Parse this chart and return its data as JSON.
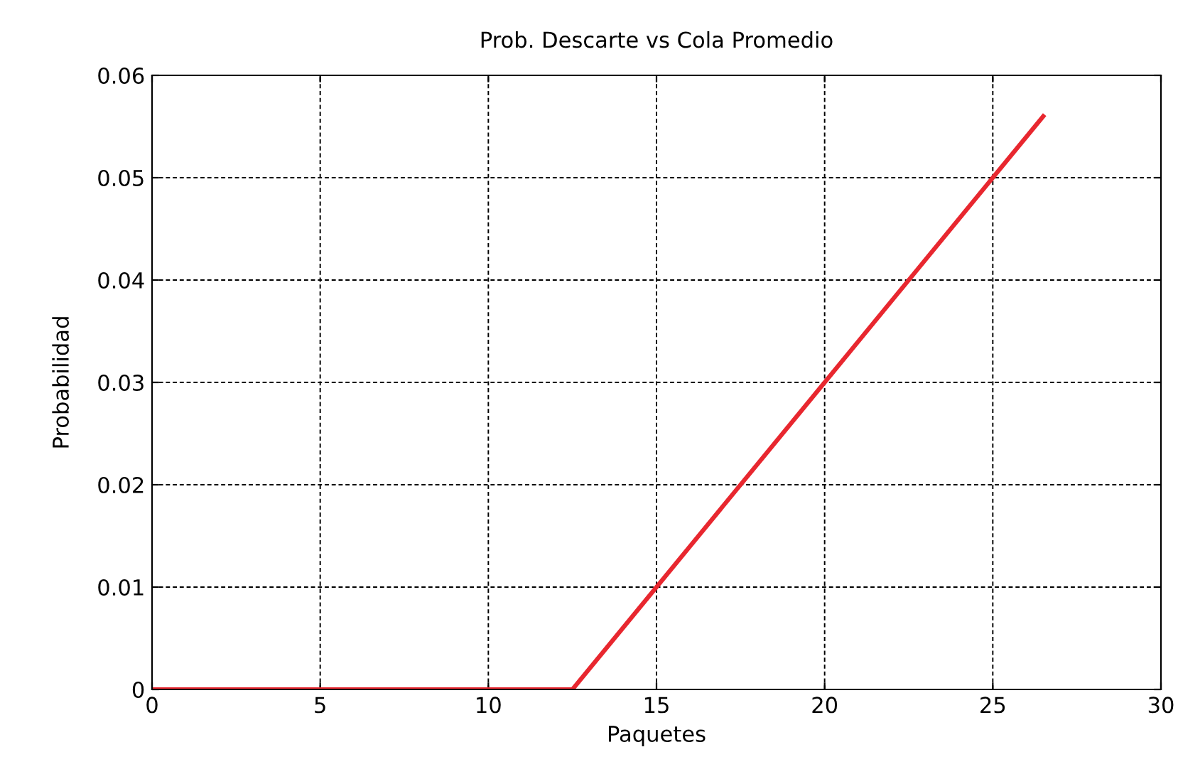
{
  "chart_data": {
    "type": "line",
    "title": "Prob. Descarte vs Cola Promedio",
    "xlabel": "Paquetes",
    "ylabel": "Probabilidad",
    "series": [
      {
        "color": "#e8272f",
        "x": [
          0,
          12.5,
          15,
          20,
          25,
          26.5
        ],
        "values": [
          0,
          0,
          0.01,
          0.03,
          0.05,
          0.056
        ]
      }
    ],
    "xlim": [
      0,
      30
    ],
    "xticks": [
      0,
      5,
      10,
      15,
      20,
      25,
      30
    ],
    "ylim": [
      0,
      0.06
    ],
    "yticks": [
      0,
      0.01,
      0.02,
      0.03,
      0.04,
      0.05,
      0.06
    ],
    "grid": true,
    "line_style": "solid",
    "marker": "none"
  }
}
